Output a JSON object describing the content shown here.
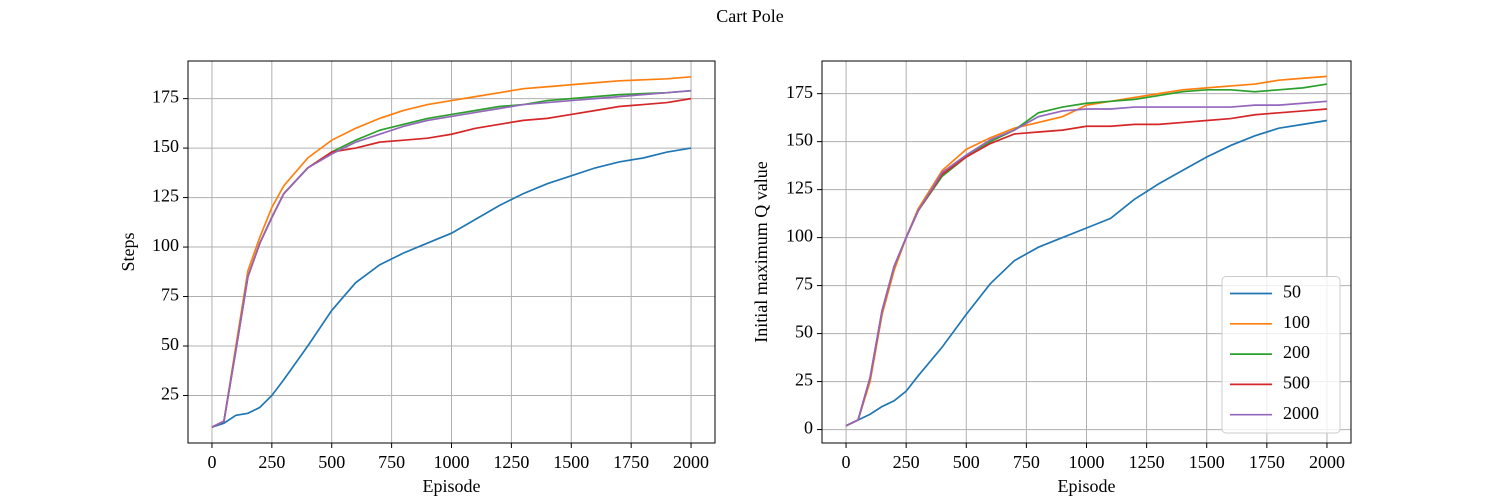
{
  "title": "Cart Pole",
  "chart_data": [
    {
      "type": "line",
      "xlabel": "Episode",
      "ylabel": "Steps",
      "xlim": [
        -100,
        2100
      ],
      "ylim": [
        1,
        194
      ],
      "xticks": [
        0,
        250,
        500,
        750,
        1000,
        1250,
        1500,
        1750,
        2000
      ],
      "yticks": [
        25,
        50,
        75,
        100,
        125,
        150,
        175
      ],
      "grid": true,
      "x": [
        0,
        50,
        100,
        150,
        200,
        250,
        300,
        400,
        500,
        600,
        700,
        800,
        900,
        1000,
        1100,
        1200,
        1300,
        1400,
        1500,
        1600,
        1700,
        1800,
        1900,
        2000
      ],
      "series": [
        {
          "name": "50",
          "color": "#1f77b4",
          "values": [
            9,
            11,
            15,
            16,
            19,
            25,
            33,
            50,
            68,
            82,
            91,
            97,
            102,
            107,
            114,
            121,
            127,
            132,
            136,
            140,
            143,
            145,
            148,
            150
          ]
        },
        {
          "name": "100",
          "color": "#ff7f0e",
          "values": [
            9,
            12,
            50,
            88,
            105,
            120,
            131,
            145,
            154,
            160,
            165,
            169,
            172,
            174,
            176,
            178,
            180,
            181,
            182,
            183,
            184,
            184.5,
            185,
            186
          ]
        },
        {
          "name": "200",
          "color": "#2ca02c",
          "values": [
            9,
            12,
            48,
            85,
            102,
            115,
            127,
            140,
            148,
            154,
            159,
            162,
            165,
            167,
            169,
            171,
            172,
            174,
            175,
            176,
            177,
            177.5,
            178,
            179
          ]
        },
        {
          "name": "500",
          "color": "#d62728",
          "values": [
            9,
            12,
            48,
            85,
            102,
            115,
            127,
            140,
            148,
            150,
            153,
            154,
            155,
            157,
            160,
            162,
            164,
            165,
            167,
            169,
            171,
            172,
            173,
            175
          ]
        },
        {
          "name": "2000",
          "color": "#9467bd",
          "values": [
            9,
            12,
            48,
            85,
            102,
            115,
            127,
            140,
            147,
            153,
            157,
            161,
            164,
            166,
            168,
            170,
            172,
            173,
            174,
            175,
            176,
            177,
            178,
            179
          ]
        }
      ]
    },
    {
      "type": "line",
      "xlabel": "Episode",
      "ylabel": "Initial maximum Q value",
      "xlim": [
        -100,
        2100
      ],
      "ylim": [
        -7,
        192
      ],
      "xticks": [
        0,
        250,
        500,
        750,
        1000,
        1250,
        1500,
        1750,
        2000
      ],
      "yticks": [
        0,
        25,
        50,
        75,
        100,
        125,
        150,
        175
      ],
      "grid": true,
      "legend": "lower right",
      "x": [
        0,
        50,
        100,
        150,
        200,
        250,
        300,
        400,
        500,
        600,
        700,
        800,
        900,
        1000,
        1100,
        1200,
        1300,
        1400,
        1500,
        1600,
        1700,
        1800,
        1900,
        2000
      ],
      "series": [
        {
          "name": "50",
          "color": "#1f77b4",
          "values": [
            2,
            5,
            8,
            12,
            15,
            20,
            28,
            43,
            60,
            76,
            88,
            95,
            100,
            105,
            110,
            120,
            128,
            135,
            142,
            148,
            153,
            157,
            159,
            161
          ]
        },
        {
          "name": "100",
          "color": "#ff7f0e",
          "values": [
            2,
            5,
            25,
            60,
            83,
            100,
            115,
            135,
            146,
            152,
            157,
            160,
            163,
            169,
            171,
            173,
            175,
            177,
            178,
            179,
            180,
            182,
            183,
            184
          ]
        },
        {
          "name": "200",
          "color": "#2ca02c",
          "values": [
            2,
            5,
            27,
            62,
            85,
            100,
            114,
            132,
            142,
            150,
            156,
            165,
            168,
            170,
            171,
            172,
            174,
            176,
            177,
            177,
            176,
            177,
            178,
            180
          ]
        },
        {
          "name": "500",
          "color": "#d62728",
          "values": [
            2,
            5,
            27,
            62,
            85,
            100,
            114,
            133,
            142,
            149,
            154,
            155,
            156,
            158,
            158,
            159,
            159,
            160,
            161,
            162,
            164,
            165,
            166,
            167
          ]
        },
        {
          "name": "2000",
          "color": "#9467bd",
          "values": [
            2,
            5,
            27,
            62,
            85,
            100,
            114,
            134,
            143,
            151,
            156,
            163,
            166,
            167,
            167,
            168,
            168,
            168,
            168,
            168,
            169,
            169,
            170,
            171
          ]
        }
      ]
    }
  ]
}
